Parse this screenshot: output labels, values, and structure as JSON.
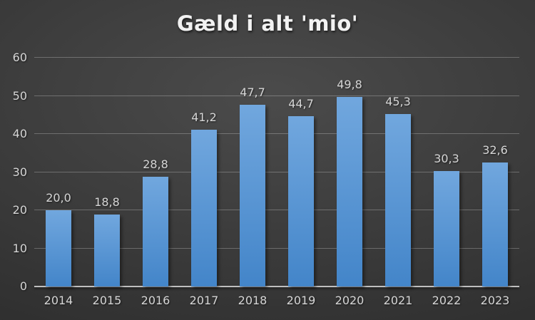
{
  "chart_data": {
    "type": "bar",
    "title": "Gæld i alt 'mio'",
    "categories": [
      "2014",
      "2015",
      "2016",
      "2017",
      "2018",
      "2019",
      "2020",
      "2021",
      "2022",
      "2023"
    ],
    "values": [
      20.0,
      18.8,
      28.8,
      41.2,
      47.7,
      44.7,
      49.8,
      45.3,
      30.3,
      32.6
    ],
    "value_labels": [
      "20,0",
      "18,8",
      "28,8",
      "41,2",
      "47,7",
      "44,7",
      "49,8",
      "45,3",
      "30,3",
      "32,6"
    ],
    "xlabel": "",
    "ylabel": "",
    "ylim": [
      0,
      60
    ],
    "yticks": [
      0,
      10,
      20,
      30,
      40,
      50,
      60
    ],
    "ytick_labels": [
      "0",
      "10",
      "20",
      "30",
      "40",
      "50",
      "60"
    ],
    "grid": true,
    "legend": "none",
    "number_format": "decimal-comma",
    "colors": {
      "bar_top": "#71a7de",
      "bar_bottom": "#4385c9",
      "background_center": "#4b4b4b",
      "background_edge": "#262626",
      "gridline": "rgba(255,255,255,0.25)",
      "axis_line": "#bfbfbf",
      "label": "#d6d6d6",
      "title": "#f2f2f2"
    }
  }
}
